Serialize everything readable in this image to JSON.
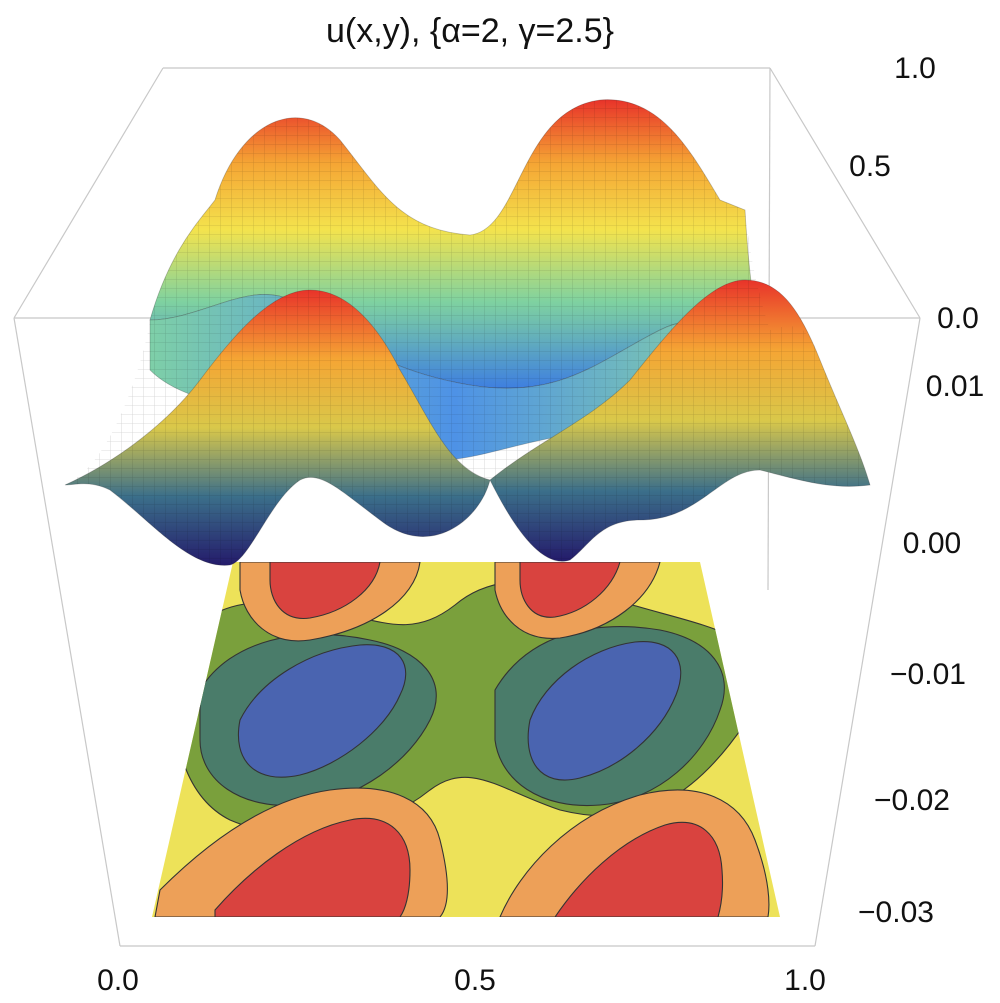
{
  "chart_data": {
    "type": "surface3d-with-contour",
    "title": "u(x,y), {α=2, γ=2.5}",
    "parameters": {
      "alpha": 2,
      "gamma": 2.5
    },
    "x_ticks": [
      "0.0",
      "0.5",
      "1.0"
    ],
    "surface_z_ticks": [
      "1.0",
      "0.5",
      "0.0"
    ],
    "contour_z_ticks": [
      "0.01",
      "0.00",
      "−0.01",
      "−0.02",
      "−0.03"
    ],
    "x_range": [
      0,
      1
    ],
    "y_range": [
      0,
      1
    ],
    "surface_z_range": [
      0,
      1
    ],
    "contour_z_range": [
      -0.035,
      0.015
    ],
    "surface_colormap": [
      "#2a1f7a",
      "#2f6fd6",
      "#6ec3e6",
      "#f4e34d",
      "#f5a534",
      "#e8332a"
    ],
    "contour_levels_colors": [
      "#4a64b0",
      "#4a7c6a",
      "#7aa03c",
      "#ede259",
      "#eda058",
      "#d9433f"
    ],
    "surface_peaks": [
      {
        "x": 0.25,
        "y": 0.85,
        "z": 1.0
      },
      {
        "x": 0.75,
        "y": 0.85,
        "z": 1.0
      },
      {
        "x": 0.3,
        "y": 0.3,
        "z": 0.95
      },
      {
        "x": 0.8,
        "y": 0.3,
        "z": 0.95
      }
    ],
    "surface_minima": [
      {
        "x": 0.2,
        "y": 0.0,
        "z": 0.0
      },
      {
        "x": 0.7,
        "y": 0.0,
        "z": 0.0
      },
      {
        "x": 0.5,
        "y": 0.55,
        "z": 0.3
      }
    ]
  }
}
